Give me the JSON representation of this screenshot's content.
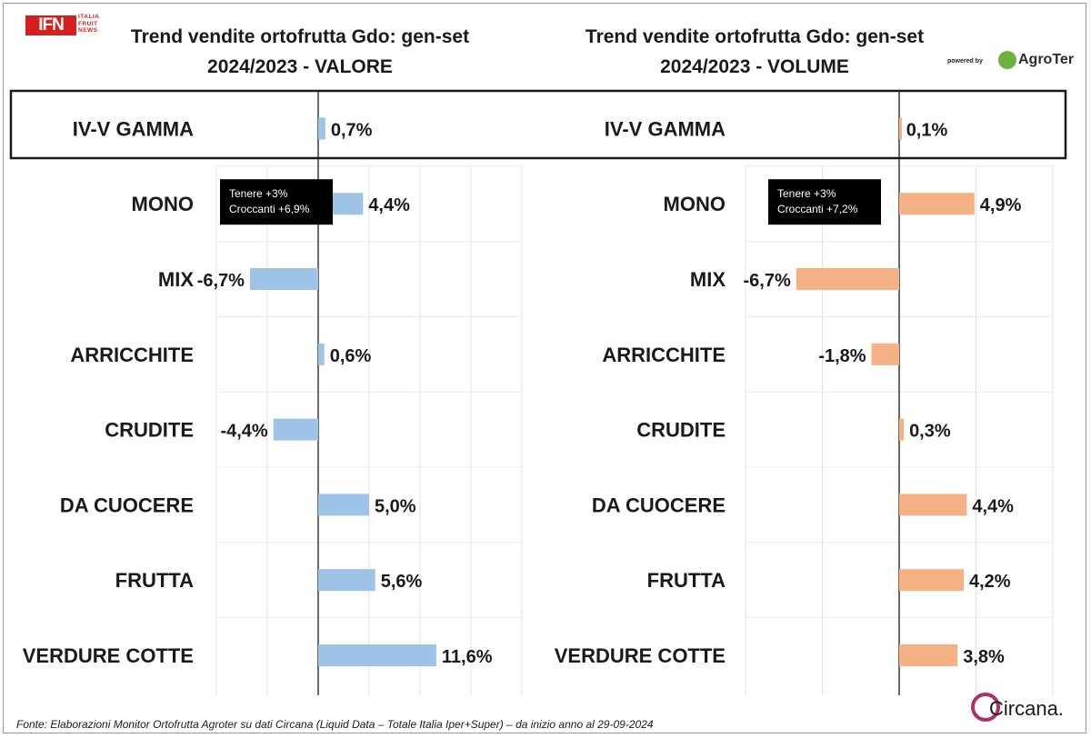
{
  "header": {
    "logo_main": "IFN",
    "logo_sub": [
      "ITALIA",
      "FRUIT",
      "NEWS"
    ],
    "powered_by": "powered by",
    "sponsor": "AgroTer"
  },
  "footer": {
    "source": "Fonte: Elaborazioni Monitor Ortofrutta Agroter su dati Circana (Liquid Data – Totale Italia Iper+Super) –  da inizio anno al 29-09-2024",
    "brand": "Circana."
  },
  "chart_data": [
    {
      "type": "bar",
      "orientation": "horizontal",
      "title": "Trend vendite ortofrutta Gdo: gen-set 2024/2023 - VALORE",
      "title_lines": [
        "Trend vendite ortofrutta Gdo: gen-set",
        "2024/2023 - VALORE"
      ],
      "categories": [
        "IV-V GAMMA",
        "MONO",
        "MIX",
        "ARRICCHITE",
        "CRUDITE",
        "DA CUOCERE",
        "FRUTTA",
        "VERDURE COTTE"
      ],
      "values": [
        0.7,
        4.4,
        -6.7,
        0.6,
        -4.4,
        5.0,
        5.6,
        11.6
      ],
      "labels": [
        "0,7%",
        "4,4%",
        "-6,7%",
        "0,6%",
        "-4,4%",
        "5,0%",
        "5,6%",
        "11,6%"
      ],
      "xlim": [
        -10,
        20
      ],
      "grid": true,
      "color": "#9dc3e6",
      "callout": [
        "Tenere +3%",
        "Croccanti +6,9%"
      ]
    },
    {
      "type": "bar",
      "orientation": "horizontal",
      "title": "Trend vendite ortofrutta Gdo: gen-set 2024/2023 - VOLUME",
      "title_lines": [
        "Trend vendite ortofrutta Gdo: gen-set",
        "2024/2023 - VOLUME"
      ],
      "categories": [
        "IV-V GAMMA",
        "MONO",
        "MIX",
        "ARRICCHITE",
        "CRUDITE",
        "DA CUOCERE",
        "FRUTTA",
        "VERDURE COTTE"
      ],
      "values": [
        0.1,
        4.9,
        -6.7,
        -1.8,
        0.3,
        4.4,
        4.2,
        3.8
      ],
      "labels": [
        "0,1%",
        "4,9%",
        "-6,7%",
        "-1,8%",
        "0,3%",
        "4,4%",
        "4,2%",
        "3,8%"
      ],
      "xlim": [
        -10,
        10
      ],
      "grid": true,
      "color": "#f4b183",
      "callout": [
        "Tenere +3%",
        "Croccanti +7,2%"
      ]
    }
  ]
}
